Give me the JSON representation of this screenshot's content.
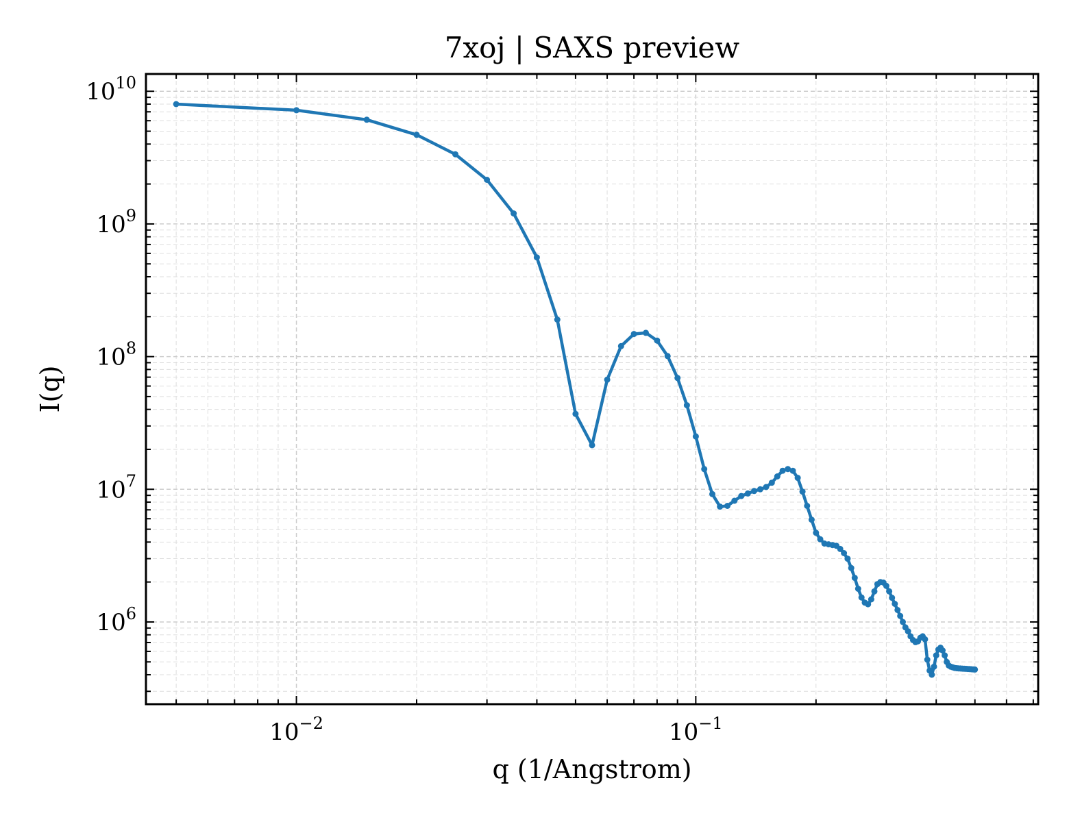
{
  "chart_data": {
    "type": "line",
    "title": "7xoj | SAXS preview",
    "xlabel": "q (1/Angstrom)",
    "ylabel": "I(q)",
    "x_scale": "log",
    "y_scale": "log",
    "xlim": [
      0.0042,
      0.72
    ],
    "ylim": [
      240000,
      13500000000
    ],
    "grid": true,
    "grid_minor": true,
    "legend": "none",
    "x_ticks": [
      {
        "value": 0.01,
        "base": "10",
        "exp": "−2"
      },
      {
        "value": 0.1,
        "base": "10",
        "exp": "−1"
      }
    ],
    "y_ticks": [
      {
        "value": 1000000,
        "base": "10",
        "exp": "6"
      },
      {
        "value": 10000000,
        "base": "10",
        "exp": "7"
      },
      {
        "value": 100000000,
        "base": "10",
        "exp": "8"
      },
      {
        "value": 1000000000,
        "base": "10",
        "exp": "9"
      },
      {
        "value": 10000000000,
        "base": "10",
        "exp": "10"
      }
    ],
    "series": [
      {
        "color": "#1f77b4",
        "x": [
          0.005,
          0.01,
          0.015,
          0.02,
          0.025,
          0.03,
          0.035,
          0.04,
          0.045,
          0.05,
          0.055,
          0.06,
          0.065,
          0.07,
          0.075,
          0.08,
          0.085,
          0.09,
          0.095,
          0.1,
          0.105,
          0.11,
          0.115,
          0.12,
          0.125,
          0.13,
          0.135,
          0.14,
          0.145,
          0.15,
          0.155,
          0.16,
          0.165,
          0.17,
          0.175,
          0.18,
          0.185,
          0.19,
          0.195,
          0.2,
          0.205,
          0.21,
          0.215,
          0.22,
          0.225,
          0.23,
          0.235,
          0.24,
          0.245,
          0.25,
          0.255,
          0.26,
          0.265,
          0.27,
          0.275,
          0.28,
          0.285,
          0.29,
          0.295,
          0.3,
          0.305,
          0.31,
          0.315,
          0.32,
          0.325,
          0.33,
          0.335,
          0.34,
          0.345,
          0.35,
          0.355,
          0.36,
          0.365,
          0.37,
          0.375,
          0.38,
          0.385,
          0.39,
          0.395,
          0.4,
          0.405,
          0.41,
          0.415,
          0.42,
          0.425,
          0.43,
          0.435,
          0.44,
          0.445,
          0.45,
          0.455,
          0.46,
          0.465,
          0.47,
          0.475,
          0.48,
          0.485,
          0.49,
          0.495,
          0.5
        ],
        "y": [
          8000000000,
          7200000000,
          6100000000,
          4700000000,
          3350000000,
          2150000000,
          1200000000,
          560000000,
          190000000,
          37000000,
          21500000,
          67000000,
          120000000,
          148000000,
          151000000,
          132000000,
          101000000,
          69000000,
          43000000,
          25000000,
          14200000,
          9200000,
          7400000,
          7500000,
          8200000,
          8900000,
          9300000,
          9700000,
          10000000,
          10400000,
          11200000,
          12500000,
          13800000,
          14200000,
          13800000,
          12200000,
          9600000,
          7500000,
          5900000,
          4700000,
          4200000,
          3900000,
          3850000,
          3800000,
          3750000,
          3550000,
          3300000,
          3000000,
          2550000,
          2150000,
          1780000,
          1530000,
          1400000,
          1360000,
          1480000,
          1700000,
          1930000,
          2000000,
          1980000,
          1870000,
          1700000,
          1520000,
          1370000,
          1230000,
          1110000,
          1000000,
          910000,
          850000,
          780000,
          730000,
          705000,
          715000,
          760000,
          780000,
          740000,
          520000,
          430000,
          400000,
          460000,
          560000,
          620000,
          640000,
          610000,
          560000,
          500000,
          470000,
          460000,
          455000,
          450000,
          448000,
          447000,
          446000,
          445000,
          444000,
          443000,
          442000,
          441000,
          440000,
          439000,
          438000
        ]
      }
    ]
  }
}
